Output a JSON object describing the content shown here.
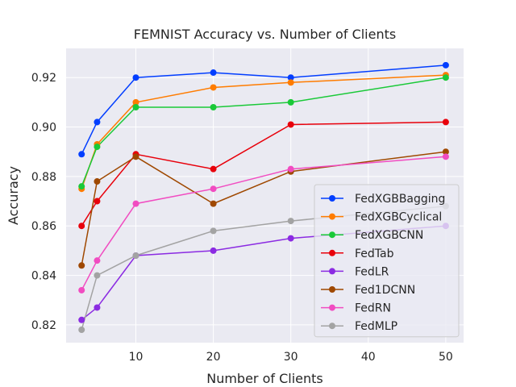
{
  "chart_data": {
    "type": "line",
    "title": "FEMNIST Accuracy vs. Number of Clients",
    "xlabel": "Number of Clients",
    "ylabel": "Accuracy",
    "x": [
      3,
      5,
      10,
      20,
      30,
      50
    ],
    "xlim": [
      1,
      52.3
    ],
    "ylim": [
      0.8128,
      0.9318
    ],
    "xticks": [
      10,
      20,
      30,
      40,
      50
    ],
    "yticks": [
      0.82,
      0.84,
      0.86,
      0.88,
      0.9,
      0.92
    ],
    "ytick_labels": [
      "0.82",
      "0.84",
      "0.86",
      "0.88",
      "0.90",
      "0.92"
    ],
    "grid": true,
    "legend_position": "lower-right",
    "series": [
      {
        "name": "FedXGBBagging",
        "color": "#023eff",
        "values": [
          0.889,
          0.902,
          0.92,
          0.922,
          0.92,
          0.925
        ]
      },
      {
        "name": "FedXGBCyclical",
        "color": "#ff7c00",
        "values": [
          0.875,
          0.893,
          0.91,
          0.916,
          0.918,
          0.921
        ]
      },
      {
        "name": "FedXGBCNN",
        "color": "#1ac938",
        "values": [
          0.876,
          0.892,
          0.908,
          0.908,
          0.91,
          0.92
        ]
      },
      {
        "name": "FedTab",
        "color": "#e8000b",
        "values": [
          0.86,
          0.87,
          0.889,
          0.883,
          0.901,
          0.902
        ]
      },
      {
        "name": "FedLR",
        "color": "#8b2be2",
        "values": [
          0.822,
          0.827,
          0.848,
          0.85,
          0.855,
          0.86
        ]
      },
      {
        "name": "Fed1DCNN",
        "color": "#9f4800",
        "values": [
          0.844,
          0.878,
          0.888,
          0.869,
          0.882,
          0.89
        ]
      },
      {
        "name": "FedRN",
        "color": "#f14cc1",
        "values": [
          0.834,
          0.846,
          0.869,
          0.875,
          0.883,
          0.888
        ]
      },
      {
        "name": "FedMLP",
        "color": "#a3a3a3",
        "values": [
          0.818,
          0.84,
          0.848,
          0.858,
          0.862,
          0.868
        ]
      }
    ]
  }
}
